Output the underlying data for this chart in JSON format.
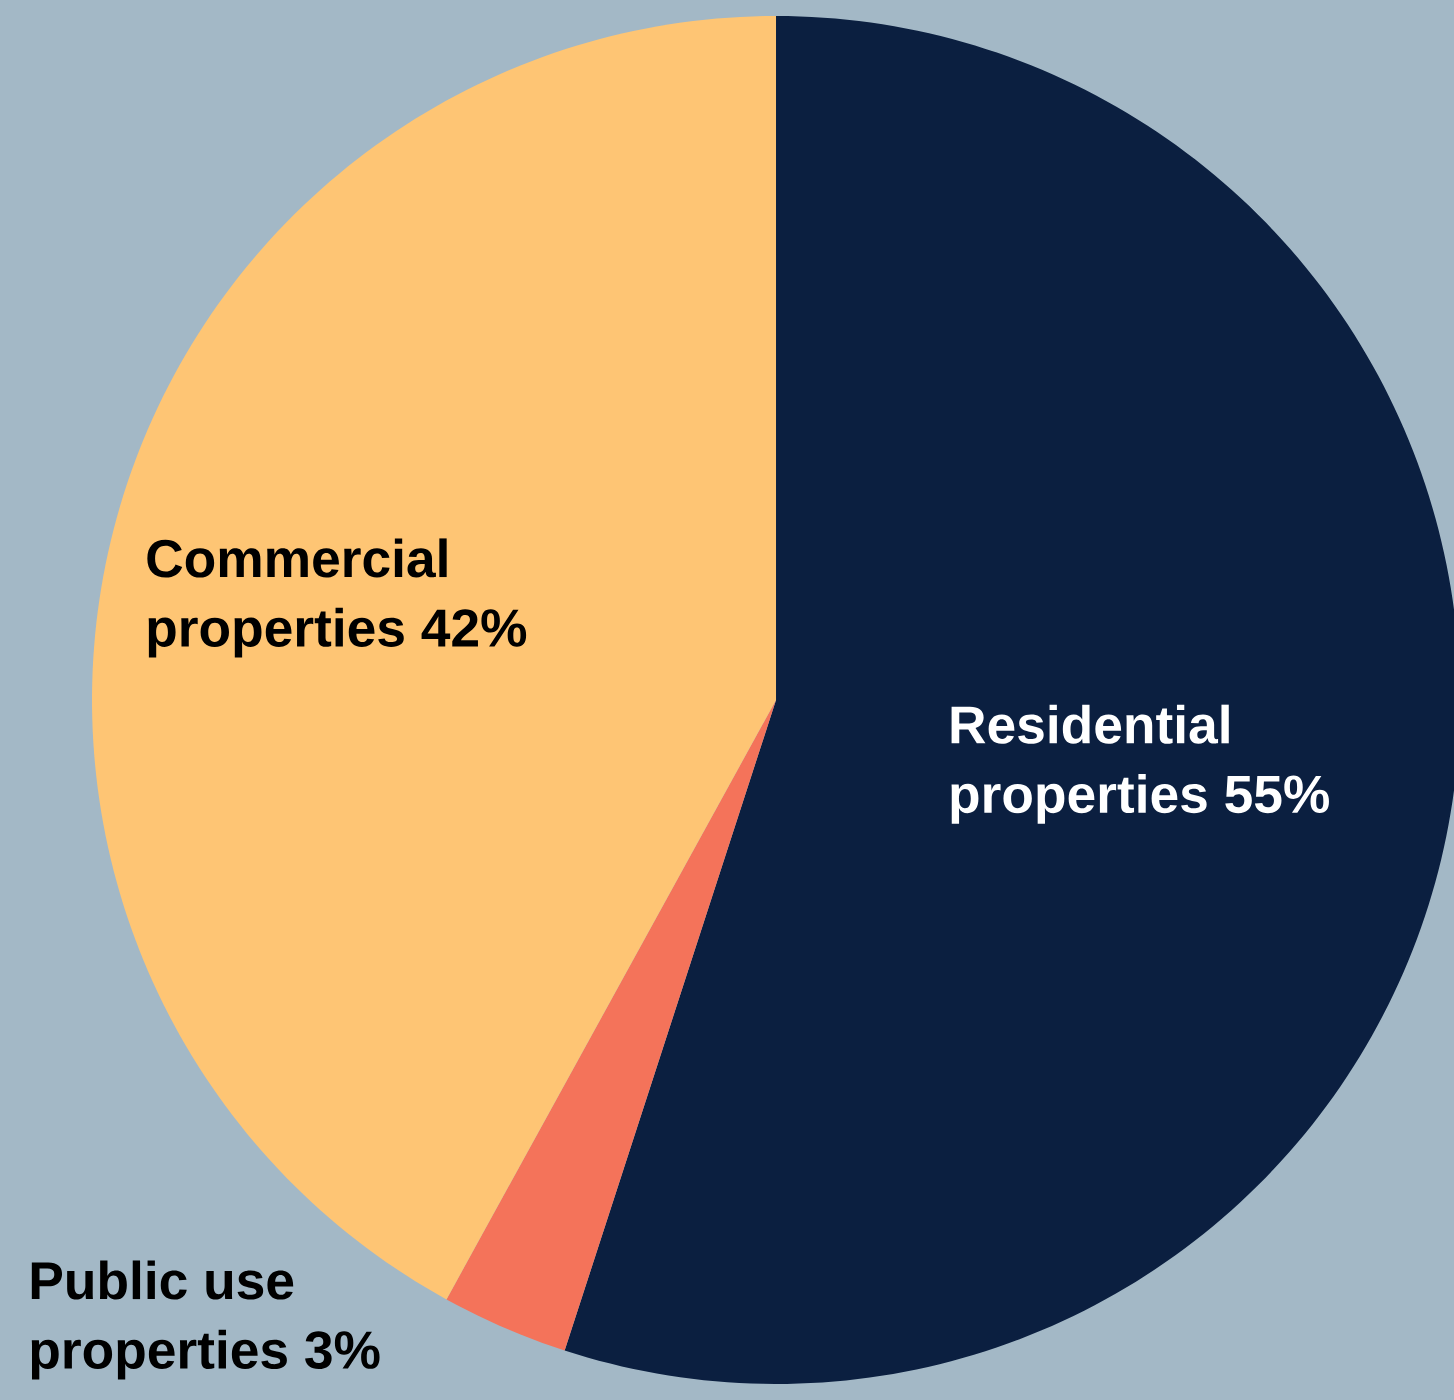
{
  "chart_data": {
    "type": "pie",
    "categories": [
      "Residential properties",
      "Public use properties",
      "Commercial properties"
    ],
    "values": [
      55,
      3,
      42
    ],
    "value_labels": [
      "55%",
      "3%",
      "42%"
    ],
    "colors": [
      "#0b1f40",
      "#f4735a",
      "#fec574"
    ]
  }
}
